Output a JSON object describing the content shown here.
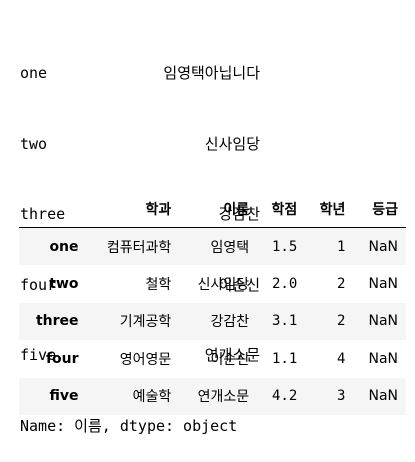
{
  "series": {
    "rows": [
      {
        "index": "one",
        "value": "임영택아닙니다"
      },
      {
        "index": "two",
        "value": "신사임당"
      },
      {
        "index": "three",
        "value": "강감찬"
      },
      {
        "index": "four",
        "value": "이순신"
      },
      {
        "index": "five",
        "value": "연개소문"
      }
    ],
    "footer": "Name: 이름, dtype: object"
  },
  "dataframe": {
    "columns": [
      "학과",
      "이름",
      "학점",
      "학년",
      "등급"
    ],
    "rows": [
      {
        "index": "one",
        "cells": [
          "컴퓨터과학",
          "임영택",
          "1.5",
          "1",
          "NaN"
        ]
      },
      {
        "index": "two",
        "cells": [
          "철학",
          "신사임당",
          "2.0",
          "2",
          "NaN"
        ]
      },
      {
        "index": "three",
        "cells": [
          "기계공학",
          "강감찬",
          "3.1",
          "2",
          "NaN"
        ]
      },
      {
        "index": "four",
        "cells": [
          "영어영문",
          "이순신",
          "1.1",
          "4",
          "NaN"
        ]
      },
      {
        "index": "five",
        "cells": [
          "예술학",
          "연개소문",
          "4.2",
          "3",
          "NaN"
        ]
      }
    ]
  }
}
